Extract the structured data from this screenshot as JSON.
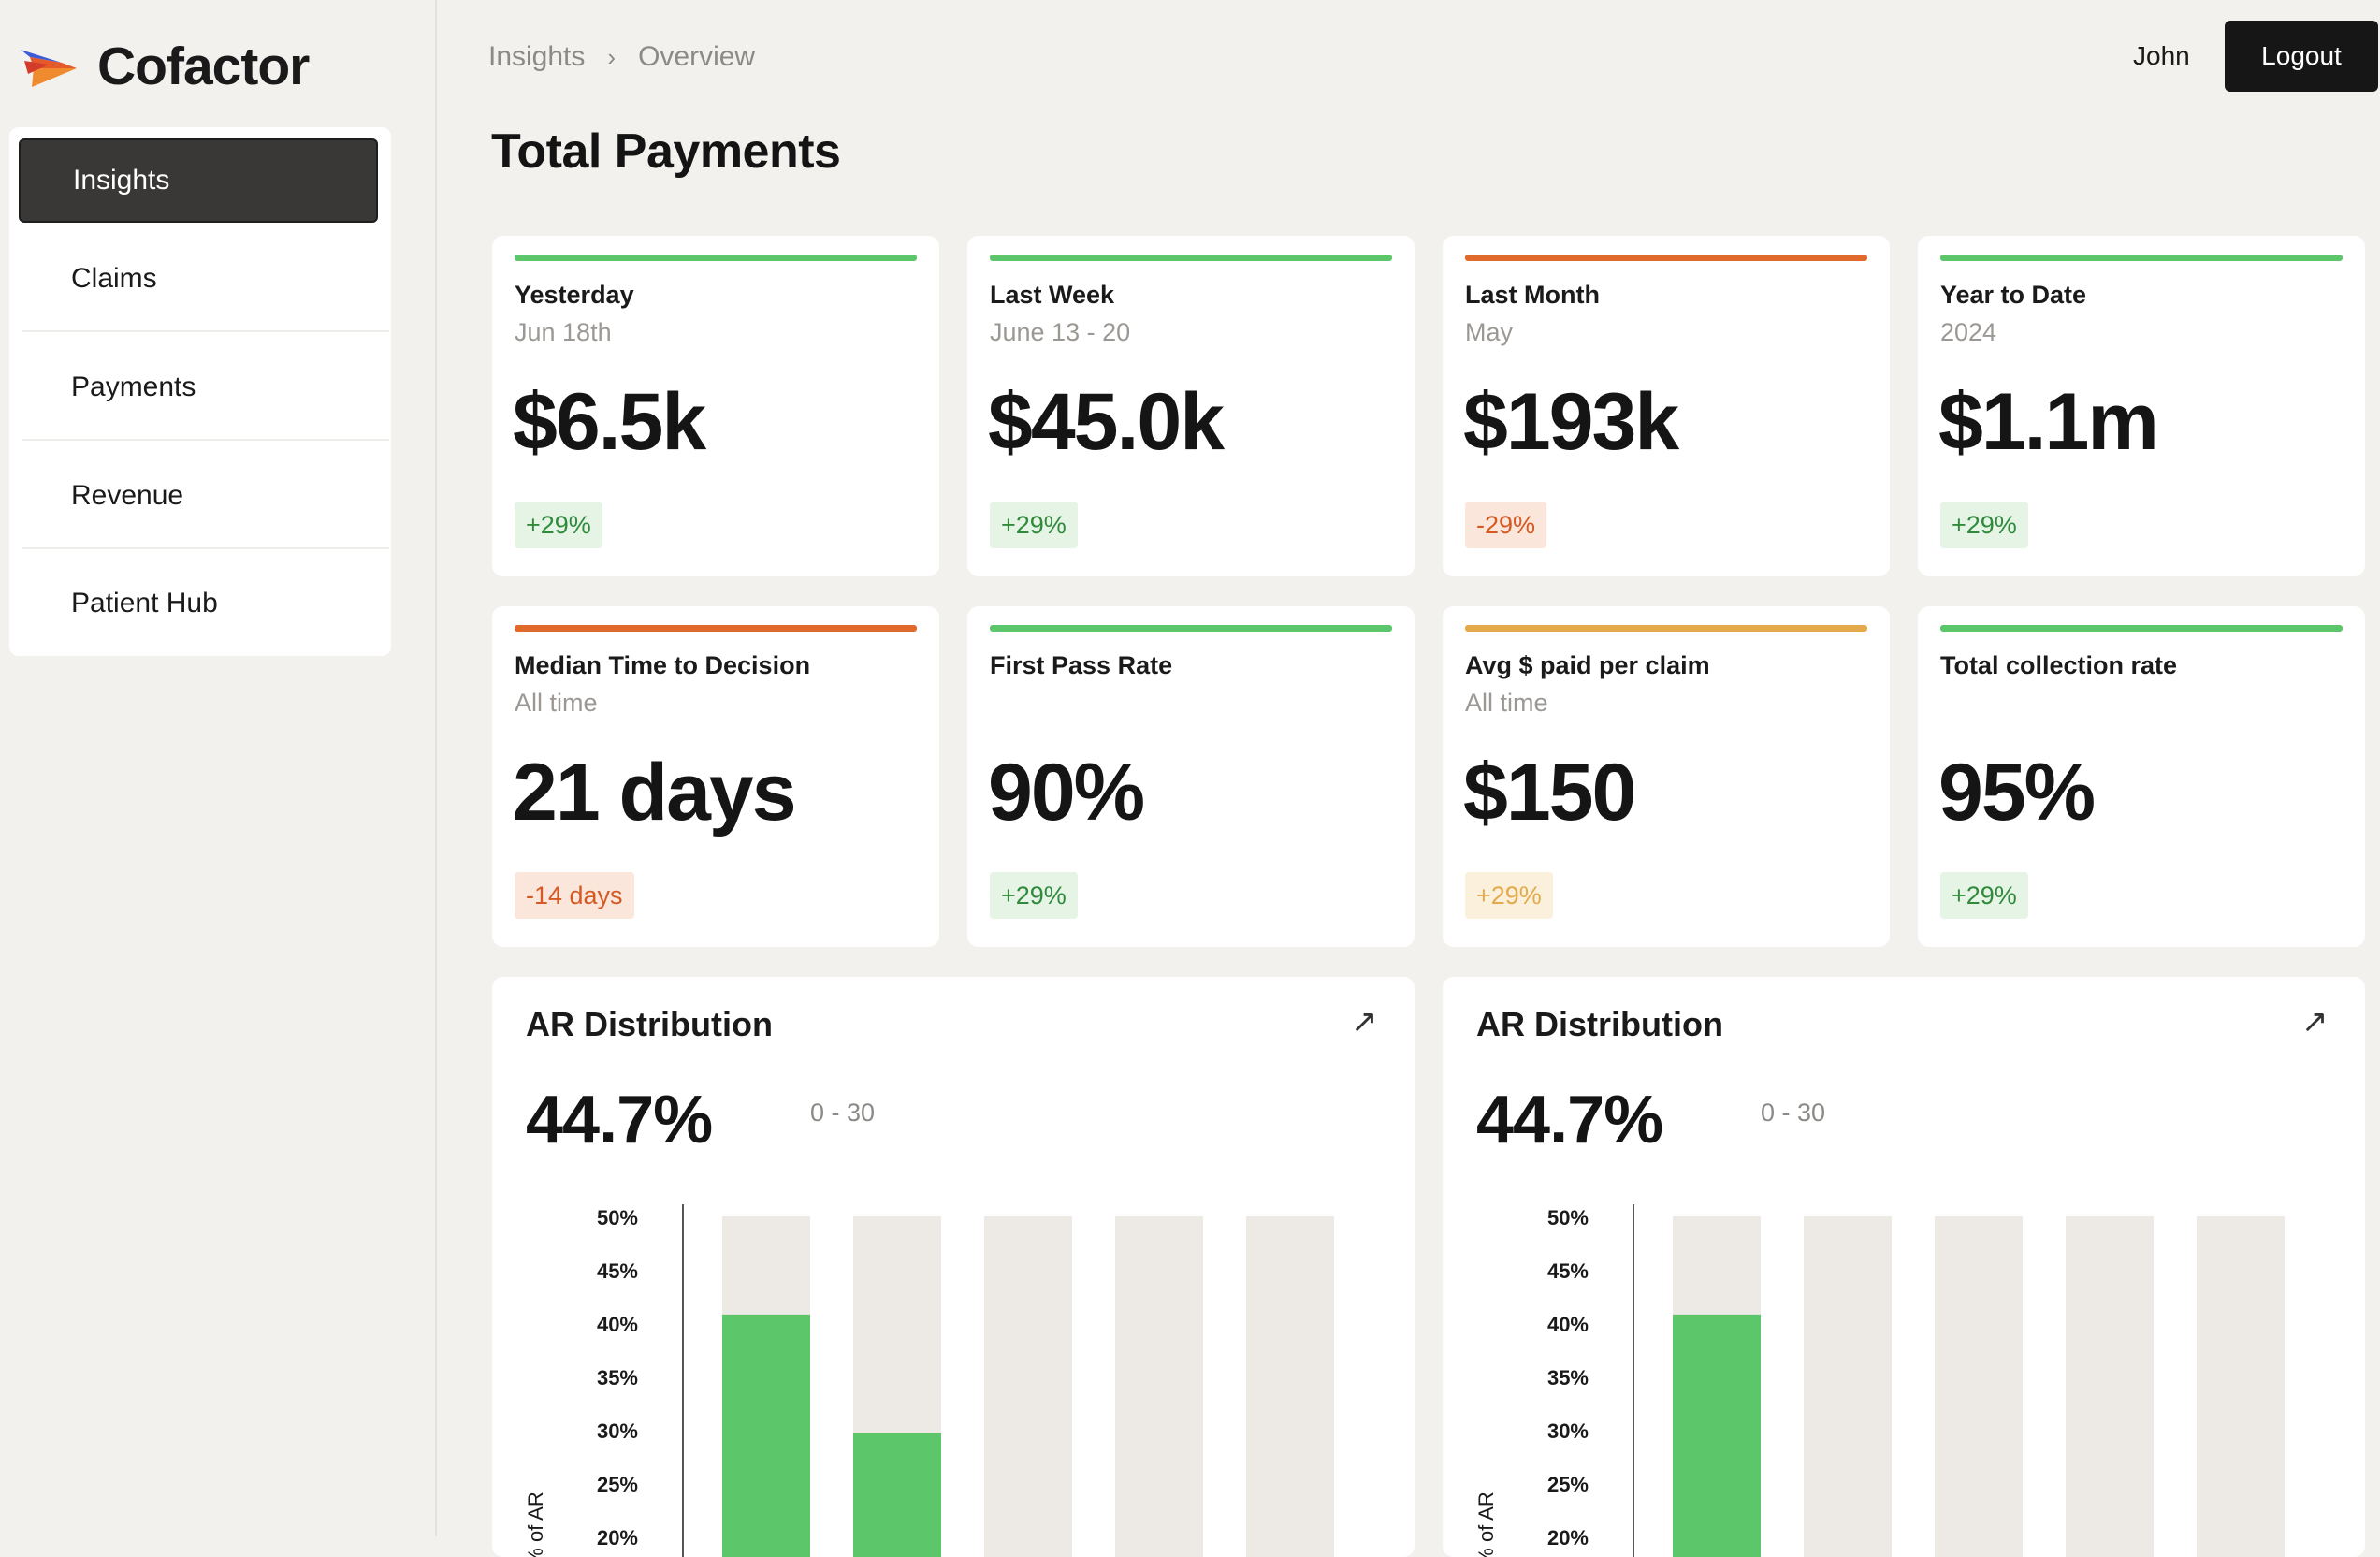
{
  "app": {
    "name": "Cofactor"
  },
  "sidebar": {
    "items": [
      {
        "label": "Insights",
        "active": true
      },
      {
        "label": "Claims"
      },
      {
        "label": "Payments"
      },
      {
        "label": "Revenue"
      },
      {
        "label": "Patient Hub"
      }
    ]
  },
  "header": {
    "breadcrumb": [
      "Insights",
      "Overview"
    ],
    "user": "John",
    "logout_label": "Logout"
  },
  "page": {
    "title": "Total Payments"
  },
  "stats": [
    {
      "title": "Yesterday",
      "subtitle": "Jun 18th",
      "value": "$6.5k",
      "change": "+29%",
      "status": "green"
    },
    {
      "title": "Last Week",
      "subtitle": "June 13 - 20",
      "value": "$45.0k",
      "change": "+29%",
      "status": "green"
    },
    {
      "title": "Last Month",
      "subtitle": "May",
      "value": "$193k",
      "change": "-29%",
      "status": "red"
    },
    {
      "title": "Year to Date",
      "subtitle": "2024",
      "value": "$1.1m",
      "change": "+29%",
      "status": "green"
    },
    {
      "title": "Median Time to Decision",
      "subtitle": "All time",
      "value": "21 days",
      "change": "-14 days",
      "status": "red"
    },
    {
      "title": "First Pass Rate",
      "subtitle": "",
      "value": "90%",
      "change": "+29%",
      "status": "green"
    },
    {
      "title": "Avg $ paid per claim",
      "subtitle": "All time",
      "value": "$150",
      "change": "+29%",
      "status": "amber"
    },
    {
      "title": "Total collection rate",
      "subtitle": "",
      "value": "95%",
      "change": "+29%",
      "status": "green"
    }
  ],
  "colors": {
    "green": "#5cc66a",
    "red": "#e06a2c",
    "amber": "#e4a94a",
    "track": "#ede9e4",
    "dark": "#161616"
  },
  "panels": [
    {
      "title": "AR Distribution",
      "value": "44.7%",
      "range": "0 - 30"
    },
    {
      "title": "AR Distribution",
      "value": "44.7%",
      "range": "0 - 30"
    }
  ],
  "chart_data": [
    {
      "type": "bar",
      "ylabel": "% of AR",
      "yticks": [
        "50%",
        "45%",
        "40%",
        "35%",
        "30%",
        "25%",
        "20%"
      ],
      "ylim": [
        20,
        50
      ],
      "values": [
        40.8,
        29.7,
        null,
        null,
        null
      ],
      "track_max": 50
    },
    {
      "type": "bar",
      "ylabel": "% of AR",
      "yticks": [
        "50%",
        "45%",
        "40%",
        "35%",
        "30%",
        "25%",
        "20%"
      ],
      "ylim": [
        20,
        50
      ],
      "values": [
        40.8,
        null,
        null,
        null,
        null
      ],
      "track_max": 50
    }
  ]
}
